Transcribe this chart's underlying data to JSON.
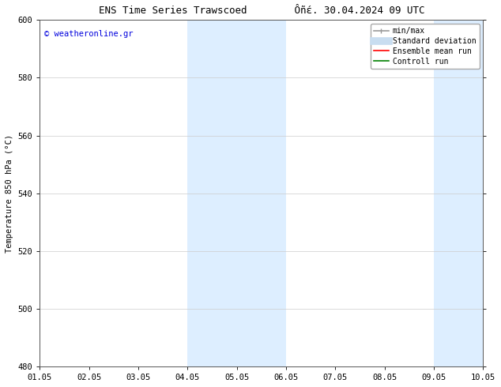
{
  "title_left": "ENS Time Series Trawscoed",
  "title_right": "Ôñέ. 30.04.2024 09 UTC",
  "ylabel": "Temperature 850 hPa (°C)",
  "ylim": [
    480,
    600
  ],
  "yticks": [
    480,
    500,
    520,
    540,
    560,
    580,
    600
  ],
  "xtick_labels": [
    "01.05",
    "02.05",
    "03.05",
    "04.05",
    "05.05",
    "06.05",
    "07.05",
    "08.05",
    "09.05",
    "10.05"
  ],
  "watermark": "© weatheronline.gr",
  "watermark_color": "#0000dd",
  "bg_color": "#ffffff",
  "shaded_bands": [
    {
      "xstart": 3.0,
      "xend": 5.0,
      "color": "#ddeeff"
    },
    {
      "xstart": 8.0,
      "xend": 10.0,
      "color": "#ddeeff"
    }
  ],
  "legend_items": [
    {
      "label": "min/max",
      "color": "#999999",
      "lw": 1.2
    },
    {
      "label": "Standard deviation",
      "color": "#c8ddf0",
      "lw": 7
    },
    {
      "label": "Ensemble mean run",
      "color": "#ff0000",
      "lw": 1.2
    },
    {
      "label": "Controll run",
      "color": "#008000",
      "lw": 1.2
    }
  ],
  "font_size": 7.5,
  "title_font_size": 9,
  "legend_font_size": 7
}
